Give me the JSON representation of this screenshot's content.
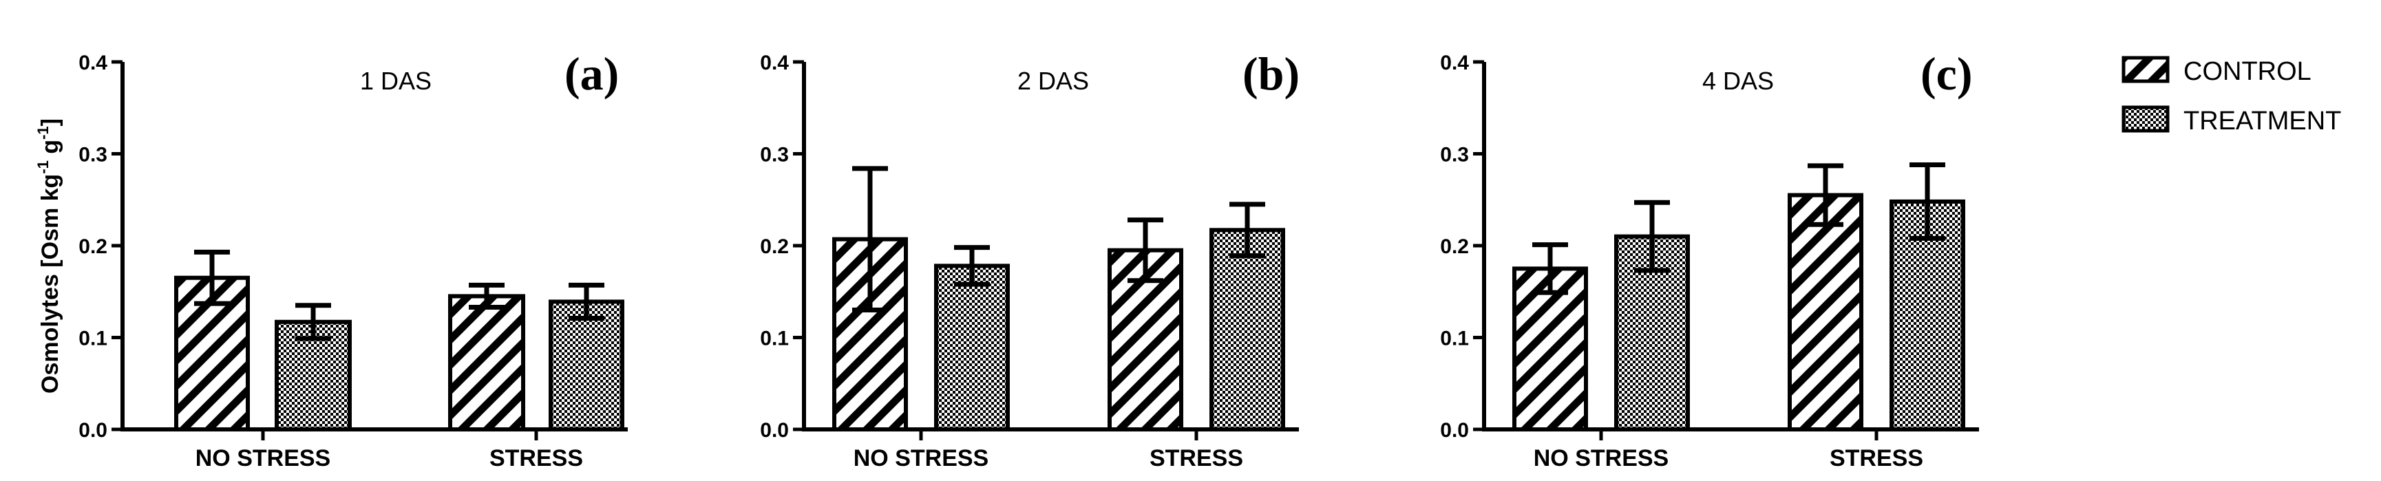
{
  "chart_data": {
    "type": "bar",
    "ylabel": "Osmolytes [Osm kg",
    "ylabel_sup1": "-1",
    "ylabel_mid": " g",
    "ylabel_sup2": "-1",
    "ylabel_end": "]",
    "ylim": [
      0,
      0.4
    ],
    "yticks": [
      "0.0",
      "0.1",
      "0.2",
      "0.3",
      "0.4"
    ],
    "categories": [
      "NO STRESS",
      "STRESS"
    ],
    "legend": {
      "position": "top-right",
      "entries": [
        {
          "name": "CONTROL",
          "pattern": "hatch"
        },
        {
          "name": "TREATMENT",
          "pattern": "checker"
        }
      ]
    },
    "panels": [
      {
        "letter": "(a)",
        "title": "1 DAS",
        "series": [
          {
            "name": "CONTROL",
            "values": [
              0.165,
              0.145
            ],
            "errors": [
              0.028,
              0.012
            ]
          },
          {
            "name": "TREATMENT",
            "values": [
              0.117,
              0.139
            ],
            "errors": [
              0.018,
              0.018
            ]
          }
        ]
      },
      {
        "letter": "(b)",
        "title": "2 DAS",
        "series": [
          {
            "name": "CONTROL",
            "values": [
              0.207,
              0.195
            ],
            "errors": [
              0.077,
              0.033
            ]
          },
          {
            "name": "TREATMENT",
            "values": [
              0.178,
              0.217
            ],
            "errors": [
              0.02,
              0.028
            ]
          }
        ]
      },
      {
        "letter": "(c)",
        "title": "4 DAS",
        "series": [
          {
            "name": "CONTROL",
            "values": [
              0.175,
              0.255
            ],
            "errors": [
              0.026,
              0.032
            ]
          },
          {
            "name": "TREATMENT",
            "values": [
              0.21,
              0.248
            ],
            "errors": [
              0.037,
              0.04
            ]
          }
        ]
      }
    ]
  }
}
